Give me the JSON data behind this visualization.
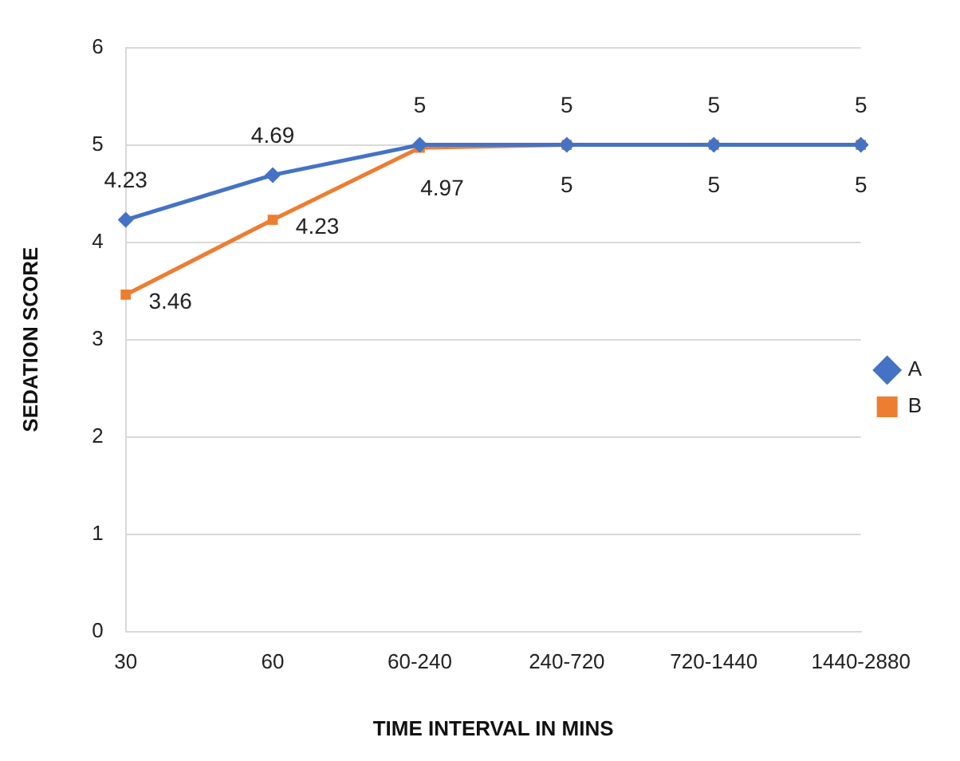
{
  "chart_data": {
    "type": "line",
    "xlabel": "TIME INTERVAL IN MINS",
    "ylabel": "SEDATION SCORE",
    "categories": [
      "30",
      "60",
      "60-240",
      "240-720",
      "720-1440",
      "1440-2880"
    ],
    "series": [
      {
        "name": "A",
        "color": "#4472c4",
        "marker": "diamond",
        "values": [
          4.23,
          4.69,
          5,
          5,
          5,
          5
        ]
      },
      {
        "name": "B",
        "color": "#ed7d31",
        "marker": "square",
        "values": [
          3.46,
          4.23,
          4.97,
          5,
          5,
          5
        ]
      }
    ],
    "ylim": [
      0,
      6
    ],
    "yticks": [
      0,
      1,
      2,
      3,
      4,
      5,
      6
    ],
    "grid": "y",
    "legend": "right",
    "data_labels": true,
    "line_style": "solid"
  }
}
